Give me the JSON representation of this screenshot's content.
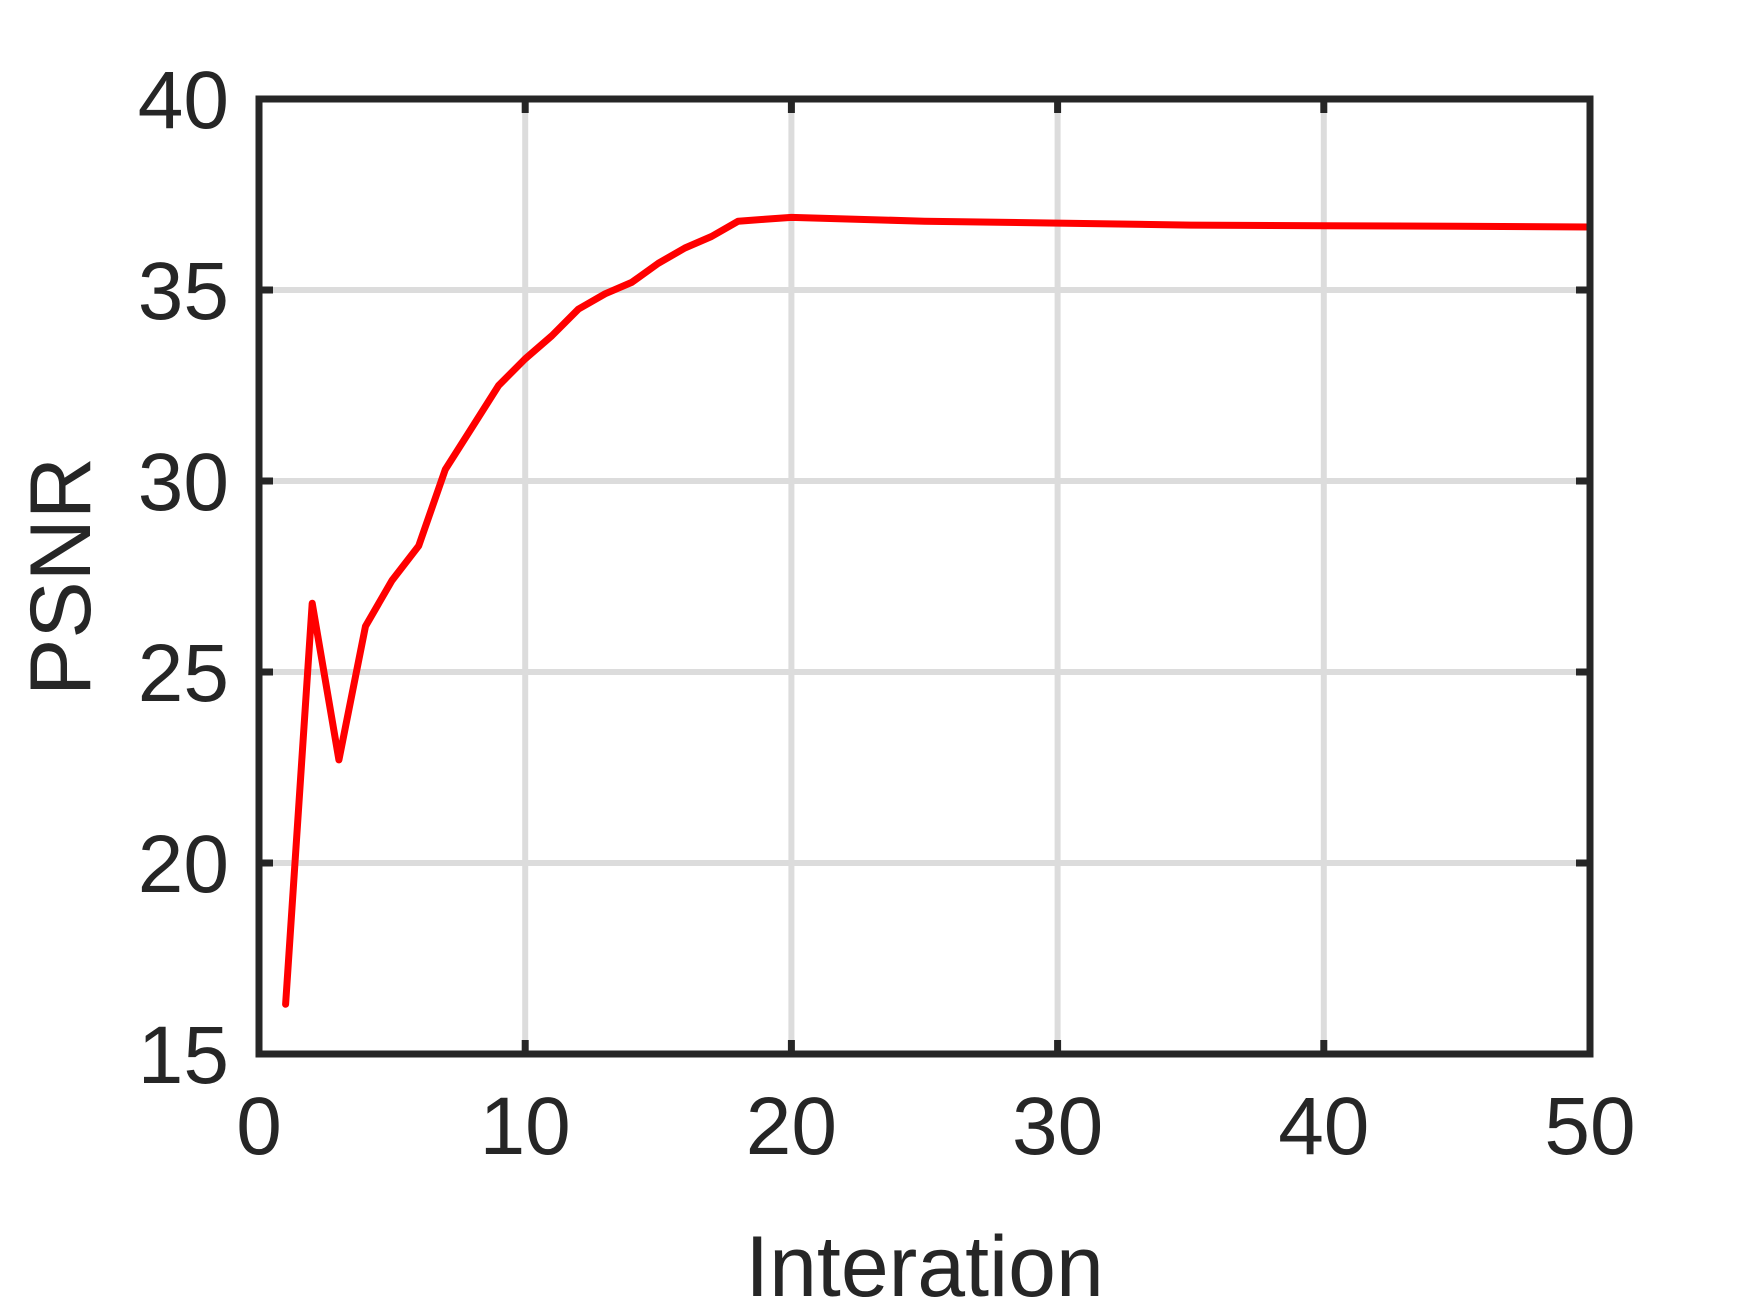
{
  "chart_data": {
    "type": "line",
    "title": "",
    "xlabel": "Interation",
    "ylabel": "PSNR",
    "xlim": [
      0,
      50
    ],
    "ylim": [
      15,
      40
    ],
    "xticks": [
      0,
      10,
      20,
      30,
      40,
      50
    ],
    "yticks": [
      15,
      20,
      25,
      30,
      35,
      40
    ],
    "xtick_labels": [
      "0",
      "10",
      "20",
      "30",
      "40",
      "50"
    ],
    "ytick_labels": [
      "15",
      "20",
      "25",
      "30",
      "35",
      "40"
    ],
    "grid": true,
    "legend": null,
    "series": [
      {
        "color": "#ff0000",
        "x": [
          1,
          2,
          3,
          4,
          5,
          6,
          7,
          8,
          9,
          10,
          11,
          12,
          13,
          14,
          15,
          16,
          17,
          18,
          19,
          20,
          25,
          30,
          35,
          40,
          45,
          50
        ],
        "y": [
          16.3,
          26.8,
          22.7,
          26.2,
          27.4,
          28.3,
          30.3,
          31.4,
          32.5,
          33.2,
          33.8,
          34.5,
          34.9,
          35.2,
          35.7,
          36.1,
          36.4,
          36.8,
          36.85,
          36.9,
          36.8,
          36.75,
          36.7,
          36.68,
          36.67,
          36.65
        ]
      }
    ]
  }
}
